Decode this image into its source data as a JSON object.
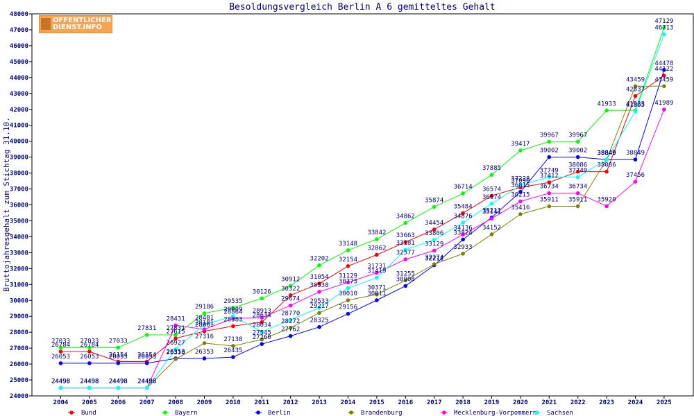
{
  "logo": {
    "line1": "OFFENTLICHER",
    "line2": "DIENST.INFO"
  },
  "chart_data": {
    "type": "line",
    "title": "Besoldungsvergleich Berlin A 6 gemitteltes Gehalt",
    "ylabel": "Bruttojahresgehalt zum Stichtag 31.10.",
    "xlabel": "",
    "ylim": [
      24000,
      48000
    ],
    "yticks": [
      24000,
      25000,
      26000,
      27000,
      28000,
      29000,
      30000,
      31000,
      32000,
      33000,
      34000,
      35000,
      36000,
      37000,
      38000,
      39000,
      40000,
      41000,
      42000,
      43000,
      44000,
      45000,
      46000,
      47000,
      48000
    ],
    "grid": "none",
    "legend": "bottom",
    "categories": [
      "2004",
      "2005",
      "2006",
      "2007",
      "2008",
      "2009",
      "2010",
      "2011",
      "2012",
      "2013",
      "2014",
      "2015",
      "2016",
      "2017",
      "2018",
      "2019",
      "2020",
      "2021",
      "2022",
      "2023",
      "2024",
      "2025"
    ],
    "series": [
      {
        "name": "Bund",
        "color": "#ff0000",
        "values": [
          26784,
          26784,
          26154,
          26154,
          27615,
          28061,
          28383,
          28634,
          30322,
          31054,
          32154,
          32862,
          33663,
          34454,
          35484,
          36574,
          37096,
          37412,
          38086,
          38086,
          42837,
          44122
        ]
      },
      {
        "name": "Bayern",
        "color": "#00ff00",
        "values": [
          27033,
          27033,
          27033,
          27831,
          27831,
          29186,
          29535,
          30126,
          30912,
          32202,
          33148,
          33842,
          34862,
          35874,
          36714,
          37885,
          39417,
          39967,
          39967,
          41933,
          41933,
          47129
        ]
      },
      {
        "name": "Berlin",
        "color": "#0000ff",
        "values": [
          26053,
          26053,
          26053,
          26053,
          26353,
          26353,
          26435,
          27260,
          27762,
          28325,
          29156,
          30011,
          30908,
          32211,
          33824,
          35211,
          36815,
          39002,
          39002,
          38849,
          38849,
          44478
        ]
      },
      {
        "name": "Brandenburg",
        "color": "#808000",
        "values": [
          24498,
          24498,
          24498,
          24498,
          26310,
          27316,
          27138,
          27545,
          28272,
          29217,
          30010,
          30371,
          31255,
          32274,
          32933,
          34152,
          35416,
          35911,
          35911,
          38840,
          43459,
          43459
        ]
      },
      {
        "name": "Mecklenburg-Vorpommern",
        "color": "#ff00ff",
        "values": [
          24498,
          24498,
          24498,
          24498,
          28431,
          28181,
          28864,
          28913,
          29674,
          30538,
          31129,
          31731,
          32577,
          33129,
          34136,
          35141,
          36215,
          36734,
          36734,
          35920,
          37456,
          41989
        ]
      },
      {
        "name": "Sachsen",
        "color": "#00ffff",
        "values": [
          24498,
          24498,
          24498,
          24498,
          26927,
          28481,
          29009,
          28034,
          28770,
          29533,
          30773,
          31419,
          33181,
          33806,
          34876,
          36074,
          37228,
          37749,
          37749,
          38849,
          41865,
          46713
        ]
      }
    ]
  }
}
